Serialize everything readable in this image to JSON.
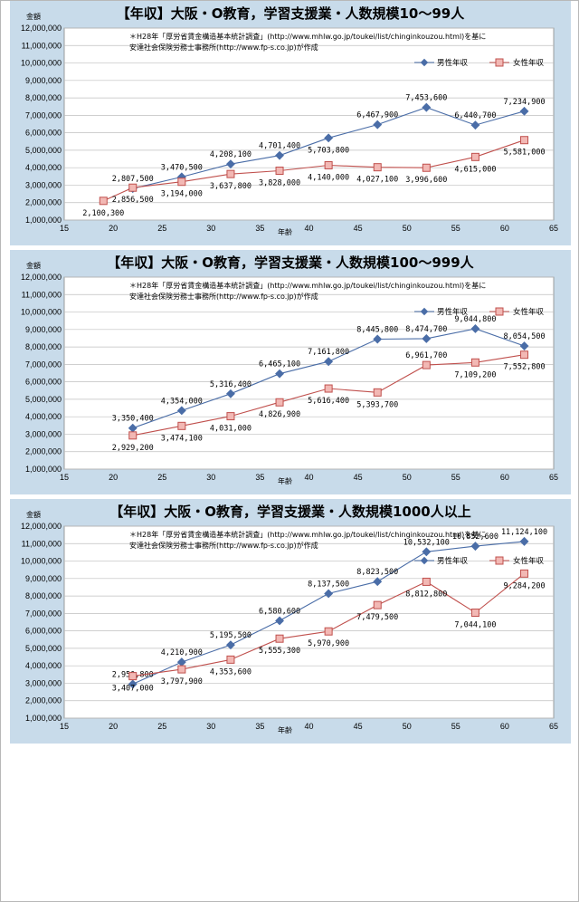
{
  "note_line1": "＊H28年「厚労省賃金構造基本統計調査」(http://www.mhlw.go.jp/toukei/list/chinginkouzou.html)を基に",
  "note_line2": "安達社会保険労務士事務所(http://www.fp-s.co.jp)が作成",
  "colors": {
    "panel_bg": "#c8dbea",
    "male": "#4a6da7",
    "female": "#c0504d",
    "female_fill": "#f2b8b4"
  },
  "chart_data": [
    {
      "type": "line",
      "title": "【年収】大阪・O教育，学習支援業・人数規模10～99人",
      "xlabel": "年齢",
      "ylabel": "金額",
      "xlim": [
        15,
        65
      ],
      "ylim": [
        1000000,
        12000000
      ],
      "x_ticks": [
        "15",
        "20",
        "25",
        "30",
        "35",
        "40",
        "45",
        "50",
        "55",
        "60",
        "65"
      ],
      "y_ticks": [
        "1,000,000",
        "2,000,000",
        "3,000,000",
        "4,000,000",
        "5,000,000",
        "6,000,000",
        "7,000,000",
        "8,000,000",
        "9,000,000",
        "10,000,000",
        "11,000,000",
        "12,000,000"
      ],
      "grid": true,
      "legend_position": "top-right",
      "series": [
        {
          "name": "男性年収",
          "x": [
            22,
            27,
            32,
            37,
            42,
            47,
            52,
            57,
            62
          ],
          "values": [
            2807500,
            3470500,
            4208100,
            4701400,
            5703800,
            6467900,
            7453600,
            6440700,
            7234900
          ],
          "labels": [
            "2,807,500",
            "3,470,500",
            "4,208,100",
            "4,701,400",
            "5,703,800",
            "6,467,900",
            "7,453,600",
            "6,440,700",
            "7,234,900"
          ]
        },
        {
          "name": "女性年収",
          "x": [
            19,
            22,
            27,
            32,
            37,
            42,
            47,
            52,
            57,
            62
          ],
          "values": [
            2100300,
            2856500,
            3194000,
            3637800,
            3828000,
            4140000,
            4027100,
            3996600,
            4615000,
            5581000
          ],
          "labels": [
            "2,100,300",
            "2,856,500",
            "3,194,000",
            "3,637,800",
            "3,828,000",
            "4,140,000",
            "4,027,100",
            "3,996,600",
            "4,615,000",
            "5,581,000"
          ]
        }
      ]
    },
    {
      "type": "line",
      "title": "【年収】大阪・O教育，学習支援業・人数規模100～999人",
      "xlabel": "年齢",
      "ylabel": "金額",
      "xlim": [
        15,
        65
      ],
      "ylim": [
        1000000,
        12000000
      ],
      "x_ticks": [
        "15",
        "20",
        "25",
        "30",
        "35",
        "40",
        "45",
        "50",
        "55",
        "60",
        "65"
      ],
      "y_ticks": [
        "1,000,000",
        "2,000,000",
        "3,000,000",
        "4,000,000",
        "5,000,000",
        "6,000,000",
        "7,000,000",
        "8,000,000",
        "9,000,000",
        "10,000,000",
        "11,000,000",
        "12,000,000"
      ],
      "grid": true,
      "legend_position": "top-right",
      "series": [
        {
          "name": "男性年収",
          "x": [
            22,
            27,
            32,
            37,
            42,
            47,
            52,
            57,
            62
          ],
          "values": [
            3350400,
            4354000,
            5316400,
            6465100,
            7161800,
            8445800,
            8474700,
            9044800,
            8054500
          ],
          "labels": [
            "3,350,400",
            "4,354,000",
            "5,316,400",
            "6,465,100",
            "7,161,800",
            "8,445,800",
            "8,474,700",
            "9,044,800",
            "8,054,500"
          ]
        },
        {
          "name": "女性年収",
          "x": [
            22,
            27,
            32,
            37,
            42,
            47,
            52,
            57,
            62
          ],
          "values": [
            2929200,
            3474100,
            4031000,
            4826900,
            5616400,
            5393700,
            6961700,
            7109200,
            7552800
          ],
          "labels": [
            "2,929,200",
            "3,474,100",
            "4,031,000",
            "4,826,900",
            "5,616,400",
            "5,393,700",
            "6,961,700",
            "7,109,200",
            "7,552,800"
          ]
        }
      ]
    },
    {
      "type": "line",
      "title": "【年収】大阪・O教育，学習支援業・人数規模1000人以上",
      "xlabel": "年齢",
      "ylabel": "金額",
      "xlim": [
        15,
        65
      ],
      "ylim": [
        1000000,
        12000000
      ],
      "x_ticks": [
        "15",
        "20",
        "25",
        "30",
        "35",
        "40",
        "45",
        "50",
        "55",
        "60",
        "65"
      ],
      "y_ticks": [
        "1,000,000",
        "2,000,000",
        "3,000,000",
        "4,000,000",
        "5,000,000",
        "6,000,000",
        "7,000,000",
        "8,000,000",
        "9,000,000",
        "10,000,000",
        "11,000,000",
        "12,000,000"
      ],
      "grid": true,
      "legend_position": "top-right",
      "series": [
        {
          "name": "男性年収",
          "x": [
            22,
            27,
            32,
            37,
            42,
            47,
            52,
            57,
            62
          ],
          "values": [
            2950800,
            4210900,
            5195500,
            6580600,
            8137500,
            8823500,
            10532100,
            10852600,
            11124100
          ],
          "labels": [
            "2,950,800",
            "4,210,900",
            "5,195,500",
            "6,580,600",
            "8,137,500",
            "8,823,500",
            "10,532,100",
            "10,852,600",
            "11,124,100"
          ]
        },
        {
          "name": "女性年収",
          "x": [
            22,
            27,
            32,
            37,
            42,
            47,
            52,
            57,
            62
          ],
          "values": [
            3407000,
            3797900,
            4353600,
            5555300,
            5970900,
            7479500,
            8812800,
            7044100,
            9284200
          ],
          "labels": [
            "3,407,000",
            "3,797,900",
            "4,353,600",
            "5,555,300",
            "5,970,900",
            "7,479,500",
            "8,812,800",
            "7,044,100",
            "9,284,200"
          ]
        }
      ]
    }
  ]
}
